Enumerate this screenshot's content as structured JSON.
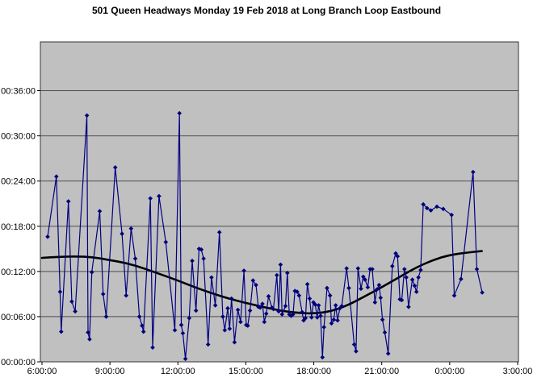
{
  "title": "501 Queen Headways Monday 19 Feb 2018 at Long Branch Loop Eastbound",
  "colors": {
    "plot_background": "#c0c0c0",
    "gridline": "#4d4d4d",
    "plot_border": "#333333",
    "headway_series": "#000080",
    "trend_series": "#000000",
    "text": "#000000",
    "page_background": "#ffffff"
  },
  "chart_data": {
    "type": "line",
    "title": "501 Queen Headways Monday 19 Feb 2018 at Long Branch Loop Eastbound",
    "xlabel": "",
    "ylabel": "",
    "grid": "horizontal-only",
    "legend_position": "none",
    "x_axis": {
      "unit": "time of day",
      "start_hour": 6,
      "end_hour": 27,
      "ticks": [
        {
          "label": "6:00:00",
          "t": 6
        },
        {
          "label": "9:00:00",
          "t": 9
        },
        {
          "label": "12:00:00",
          "t": 12
        },
        {
          "label": "15:00:00",
          "t": 15
        },
        {
          "label": "18:00:00",
          "t": 18
        },
        {
          "label": "21:00:00",
          "t": 21
        },
        {
          "label": "0:00:00",
          "t": 24
        },
        {
          "label": "3:00:00",
          "t": 27
        }
      ]
    },
    "y_axis": {
      "unit": "headway (hh:mm:ss)",
      "min": 0,
      "max": 36,
      "ticks": [
        {
          "label": "00:00:00",
          "minutes": 0
        },
        {
          "label": "00:06:00",
          "minutes": 6
        },
        {
          "label": "00:12:00",
          "minutes": 12
        },
        {
          "label": "00:18:00",
          "minutes": 18
        },
        {
          "label": "00:24:00",
          "minutes": 24
        },
        {
          "label": "00:30:00",
          "minutes": 30
        },
        {
          "label": "00:36:00",
          "minutes": 36
        }
      ]
    },
    "series": [
      {
        "name": "headways",
        "style": "line-with-diamond-markers",
        "color": "#000080",
        "points": [
          [
            "6:15",
            16.6
          ],
          [
            "6:38",
            24.6
          ],
          [
            "6:48",
            9.3
          ],
          [
            "6:51",
            4.0
          ],
          [
            "7:10",
            21.3
          ],
          [
            "7:19",
            8.0
          ],
          [
            "7:28",
            6.7
          ],
          [
            "7:59",
            32.7
          ],
          [
            "8:02",
            3.9
          ],
          [
            "8:06",
            3.0
          ],
          [
            "8:12",
            11.9
          ],
          [
            "8:33",
            20.0
          ],
          [
            "8:42",
            9.0
          ],
          [
            "8:50",
            6.0
          ],
          [
            "9:14",
            25.8
          ],
          [
            "9:32",
            17.0
          ],
          [
            "9:43",
            8.8
          ],
          [
            "9:56",
            17.7
          ],
          [
            "10:07",
            13.7
          ],
          [
            "10:18",
            6.0
          ],
          [
            "10:25",
            4.8
          ],
          [
            "10:29",
            4.0
          ],
          [
            "10:47",
            21.7
          ],
          [
            "10:53",
            1.9
          ],
          [
            "11:10",
            22.0
          ],
          [
            "11:28",
            15.9
          ],
          [
            "11:52",
            4.2
          ],
          [
            "12:04",
            33.0
          ],
          [
            "12:09",
            4.9
          ],
          [
            "12:13",
            3.8
          ],
          [
            "12:20",
            0.4
          ],
          [
            "12:30",
            5.8
          ],
          [
            "12:38",
            13.4
          ],
          [
            "12:48",
            6.8
          ],
          [
            "12:56",
            15.0
          ],
          [
            "13:02",
            14.9
          ],
          [
            "13:08",
            13.7
          ],
          [
            "13:20",
            2.3
          ],
          [
            "13:29",
            11.2
          ],
          [
            "13:39",
            7.5
          ],
          [
            "13:50",
            17.2
          ],
          [
            "13:59",
            6.0
          ],
          [
            "14:04",
            4.2
          ],
          [
            "14:12",
            7.1
          ],
          [
            "14:17",
            4.4
          ],
          [
            "14:22",
            8.4
          ],
          [
            "14:30",
            2.6
          ],
          [
            "14:39",
            6.9
          ],
          [
            "14:46",
            5.3
          ],
          [
            "14:55",
            12.1
          ],
          [
            "15:01",
            4.9
          ],
          [
            "15:05",
            4.8
          ],
          [
            "15:11",
            6.8
          ],
          [
            "15:19",
            10.8
          ],
          [
            "15:27",
            10.2
          ],
          [
            "15:33",
            7.3
          ],
          [
            "15:38",
            7.2
          ],
          [
            "15:44",
            7.7
          ],
          [
            "15:49",
            5.3
          ],
          [
            "15:54",
            6.4
          ],
          [
            "16:00",
            8.7
          ],
          [
            "16:09",
            7.2
          ],
          [
            "16:13",
            7.0
          ],
          [
            "16:22",
            11.5
          ],
          [
            "16:27",
            6.7
          ],
          [
            "16:32",
            12.9
          ],
          [
            "16:36",
            6.3
          ],
          [
            "16:45",
            7.4
          ],
          [
            "16:50",
            11.8
          ],
          [
            "16:55",
            6.3
          ],
          [
            "17:00",
            6.1
          ],
          [
            "17:05",
            6.3
          ],
          [
            "17:10",
            9.4
          ],
          [
            "17:16",
            9.3
          ],
          [
            "17:21",
            8.8
          ],
          [
            "17:29",
            6.6
          ],
          [
            "17:33",
            5.5
          ],
          [
            "17:38",
            5.8
          ],
          [
            "17:43",
            10.3
          ],
          [
            "17:49",
            8.4
          ],
          [
            "17:54",
            5.9
          ],
          [
            "17:59",
            7.9
          ],
          [
            "18:04",
            7.6
          ],
          [
            "18:09",
            5.9
          ],
          [
            "18:13",
            7.5
          ],
          [
            "18:18",
            6.1
          ],
          [
            "18:23",
            0.6
          ],
          [
            "18:27",
            4.6
          ],
          [
            "18:35",
            9.8
          ],
          [
            "18:43",
            8.8
          ],
          [
            "18:47",
            5.1
          ],
          [
            "18:53",
            5.6
          ],
          [
            "18:58",
            7.5
          ],
          [
            "19:03",
            5.5
          ],
          [
            "19:09",
            7.1
          ],
          [
            "19:14",
            7.4
          ],
          [
            "19:27",
            12.4
          ],
          [
            "19:33",
            9.8
          ],
          [
            "19:47",
            2.3
          ],
          [
            "19:52",
            1.4
          ],
          [
            "19:57",
            12.4
          ],
          [
            "20:05",
            9.7
          ],
          [
            "20:11",
            11.3
          ],
          [
            "20:16",
            10.9
          ],
          [
            "20:23",
            9.9
          ],
          [
            "20:29",
            12.3
          ],
          [
            "20:35",
            12.3
          ],
          [
            "20:42",
            7.9
          ],
          [
            "20:47",
            9.6
          ],
          [
            "20:53",
            10.2
          ],
          [
            "20:57",
            8.5
          ],
          [
            "21:02",
            5.6
          ],
          [
            "21:08",
            3.9
          ],
          [
            "21:17",
            1.1
          ],
          [
            "21:28",
            12.7
          ],
          [
            "21:37",
            14.4
          ],
          [
            "21:42",
            14.0
          ],
          [
            "21:48",
            8.3
          ],
          [
            "21:53",
            8.2
          ],
          [
            "22:00",
            12.3
          ],
          [
            "22:05",
            11.2
          ],
          [
            "22:11",
            7.3
          ],
          [
            "22:21",
            10.9
          ],
          [
            "22:27",
            10.1
          ],
          [
            "22:32",
            9.3
          ],
          [
            "22:37",
            11.2
          ],
          [
            "22:43",
            12.2
          ],
          [
            "22:50",
            20.9
          ],
          [
            "23:00",
            20.4
          ],
          [
            "23:10",
            20.1
          ],
          [
            "23:26",
            20.6
          ],
          [
            "23:43",
            20.3
          ],
          [
            "0:05",
            19.5
          ],
          [
            "0:12",
            8.8
          ],
          [
            "0:30",
            11.0
          ],
          [
            "1:02",
            25.2
          ],
          [
            "1:12",
            12.3
          ],
          [
            "1:26",
            9.2
          ]
        ]
      },
      {
        "name": "trend",
        "style": "smooth-thick-line",
        "color": "#000000",
        "points": [
          [
            "6:00",
            13.8
          ],
          [
            "6:45",
            13.95
          ],
          [
            "7:30",
            14.0
          ],
          [
            "8:15",
            13.9
          ],
          [
            "9:00",
            13.5
          ],
          [
            "9:45",
            13.1
          ],
          [
            "10:30",
            12.4
          ],
          [
            "11:15",
            11.6
          ],
          [
            "12:00",
            10.8
          ],
          [
            "12:45",
            9.9
          ],
          [
            "13:30",
            9.1
          ],
          [
            "14:15",
            8.4
          ],
          [
            "15:00",
            7.8
          ],
          [
            "15:45",
            7.3
          ],
          [
            "16:30",
            6.8
          ],
          [
            "17:15",
            6.5
          ],
          [
            "18:00",
            6.4
          ],
          [
            "18:45",
            6.7
          ],
          [
            "19:30",
            7.5
          ],
          [
            "20:15",
            8.7
          ],
          [
            "21:00",
            9.9
          ],
          [
            "21:45",
            11.2
          ],
          [
            "22:30",
            12.5
          ],
          [
            "23:15",
            13.5
          ],
          [
            "0:00",
            14.2
          ],
          [
            "0:45",
            14.5
          ],
          [
            "1:25",
            14.7
          ]
        ]
      }
    ]
  }
}
